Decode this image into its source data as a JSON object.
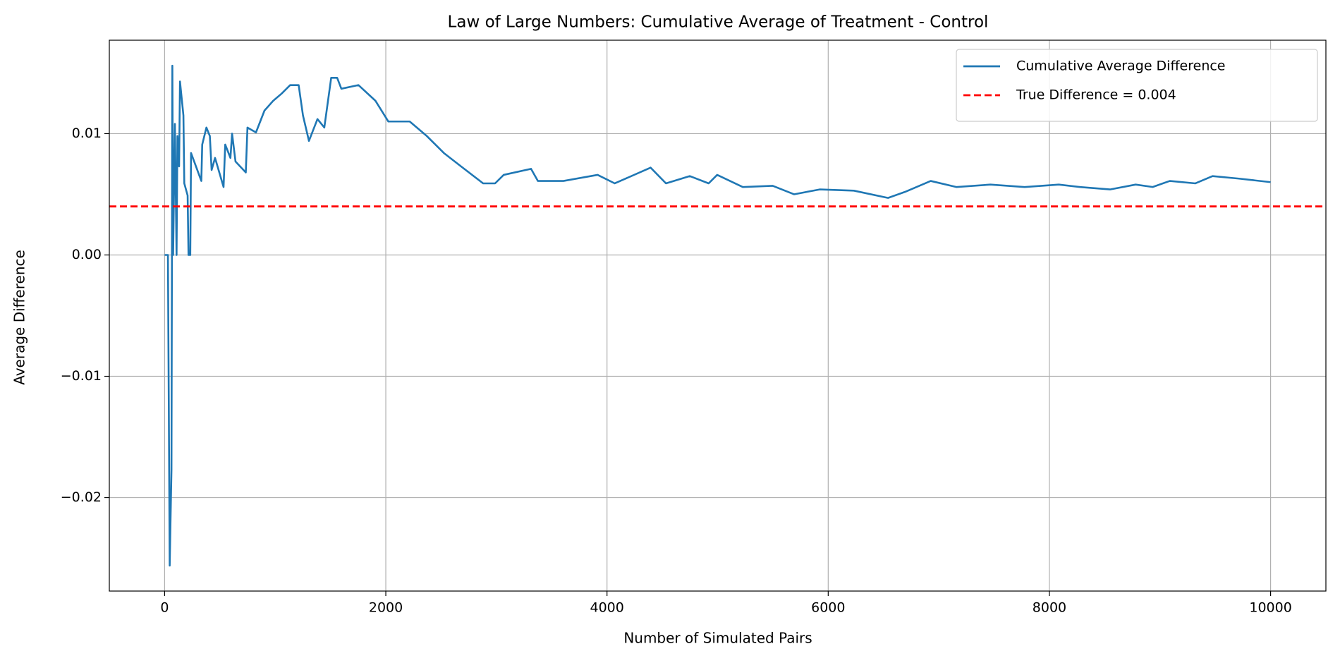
{
  "chart_data": {
    "type": "line",
    "title": "Law of Large Numbers: Cumulative Average of Treatment - Control",
    "x_label": "Number of Simulated Pairs",
    "y_label": "Average Difference",
    "x": [
      0,
      30,
      46,
      62,
      70,
      77,
      93,
      108,
      116,
      131,
      139,
      170,
      178,
      208,
      216,
      232,
      239,
      332,
      340,
      378,
      409,
      425,
      456,
      533,
      548,
      595,
      610,
      641,
      734,
      749,
      826,
      903,
      981,
      1058,
      1135,
      1212,
      1251,
      1305,
      1382,
      1444,
      1506,
      1560,
      1598,
      1753,
      1907,
      2023,
      2216,
      2371,
      2525,
      2680,
      2880,
      2988,
      3066,
      3313,
      3375,
      3606,
      3915,
      4070,
      4394,
      4533,
      4749,
      4919,
      4996,
      5228,
      5498,
      5691,
      5923,
      6232,
      6541,
      6695,
      6927,
      7158,
      7467,
      7776,
      8085,
      8278,
      8548,
      8780,
      8934,
      9089,
      9320,
      9475,
      9707,
      10000
    ],
    "series": [
      {
        "name": "Cumulative Average Difference",
        "color": "#1f77b4",
        "values": [
          0,
          0,
          -0.0256,
          -0.0177,
          0.0156,
          0,
          0.0108,
          0,
          0.0098,
          0.0073,
          0.0143,
          0.0115,
          0.0059,
          0.0049,
          0,
          0,
          0.0084,
          0.0061,
          0.0091,
          0.0105,
          0.0098,
          0.007,
          0.008,
          0.0056,
          0.0091,
          0.008,
          0.01,
          0.0077,
          0.0068,
          0.0105,
          0.0101,
          0.0119,
          0.0127,
          0.0133,
          0.014,
          0.014,
          0.0115,
          0.0094,
          0.0112,
          0.0105,
          0.0146,
          0.0146,
          0.0137,
          0.014,
          0.0127,
          0.011,
          0.011,
          0.0098,
          0.0084,
          0.0073,
          0.0059,
          0.0059,
          0.0066,
          0.0071,
          0.0061,
          0.0061,
          0.0066,
          0.0059,
          0.0072,
          0.0059,
          0.0065,
          0.0059,
          0.0066,
          0.0056,
          0.0057,
          0.005,
          0.0054,
          0.0053,
          0.0047,
          0.0052,
          0.0061,
          0.0056,
          0.0058,
          0.0056,
          0.0058,
          0.0056,
          0.0054,
          0.0058,
          0.0056,
          0.0061,
          0.0059,
          0.0065,
          0.0063,
          0.006
        ]
      }
    ],
    "reference_line": {
      "name": "True Difference = 0.004",
      "value": 0.004,
      "color": "#ff0000"
    },
    "xlim": [
      -500,
      10500
    ],
    "ylim": [
      -0.0277,
      0.0177
    ],
    "xticks": [
      0,
      2000,
      4000,
      6000,
      8000,
      10000
    ],
    "yticks": [
      {
        "value": -0.02,
        "label": "−0.02"
      },
      {
        "value": -0.01,
        "label": "−0.01"
      },
      {
        "value": 0,
        "label": "0.00"
      },
      {
        "value": 0.01,
        "label": "0.01"
      }
    ],
    "grid": true,
    "legend": "upper right"
  }
}
